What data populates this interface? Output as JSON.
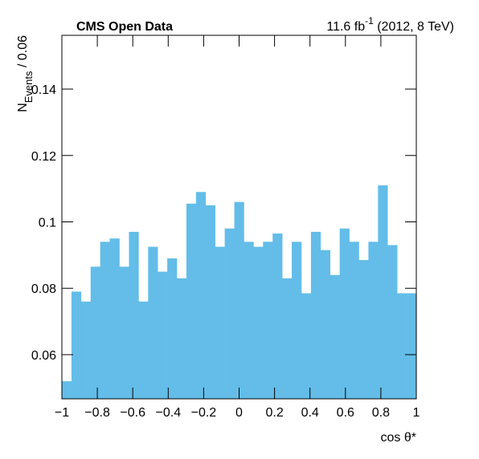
{
  "chart_data": {
    "type": "histogram",
    "title": "CMS Open Data",
    "luminosity": {
      "main": "11.6 fb",
      "sup": "-1",
      "rest": " (2012, 8 TeV)"
    },
    "y_label": {
      "main": "N",
      "sub": "Events",
      "rest": " / 0.06"
    },
    "x_label": "cos θ*",
    "color": "#63bde8",
    "bins": [
      -1,
      -0.9459,
      -0.8919,
      -0.8378,
      -0.7838,
      -0.7297,
      -0.6757,
      -0.6216,
      -0.5676,
      -0.5135,
      -0.4595,
      -0.4054,
      -0.3514,
      -0.2973,
      -0.2432,
      -0.1892,
      -0.1351,
      -0.0811,
      -0.027,
      0.027,
      0.0811,
      0.1351,
      0.1892,
      0.2432,
      0.2973,
      0.3514,
      0.4054,
      0.4595,
      0.5135,
      0.5676,
      0.6216,
      0.6757,
      0.7297,
      0.7838,
      0.8378,
      0.8919,
      0.9459,
      1
    ],
    "values": [
      0.052,
      0.079,
      0.076,
      0.0865,
      0.094,
      0.095,
      0.0865,
      0.097,
      0.076,
      0.0925,
      0.085,
      0.089,
      0.083,
      0.1055,
      0.109,
      0.105,
      0.0925,
      0.098,
      0.106,
      0.094,
      0.0925,
      0.094,
      0.0965,
      0.083,
      0.094,
      0.0785,
      0.097,
      0.0915,
      0.084,
      0.098,
      0.094,
      0.0885,
      0.094,
      0.111,
      0.093,
      0.0785,
      0.0785
    ],
    "xlim": [
      -1,
      1
    ],
    "xticks": [
      {
        "value": -1,
        "label": "−1"
      },
      {
        "value": -0.8,
        "label": "−0.8"
      },
      {
        "value": -0.6,
        "label": "−0.6"
      },
      {
        "value": -0.4,
        "label": "−0.4"
      },
      {
        "value": -0.2,
        "label": "−0.2"
      },
      0,
      0.2,
      0.4,
      0.6,
      0.8,
      1
    ],
    "ylim": [
      0.0467,
      0.1562
    ],
    "yticks": [
      0.06,
      0.08,
      0.1,
      0.12,
      0.14
    ]
  }
}
